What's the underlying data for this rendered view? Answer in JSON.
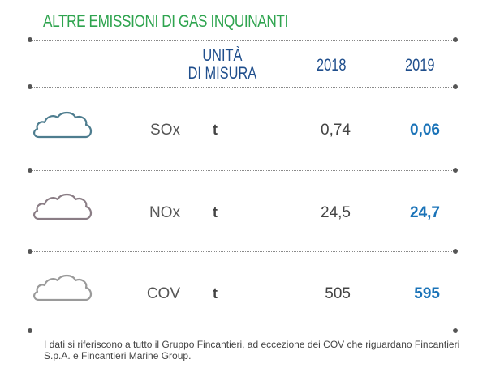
{
  "title": "ALTRE EMISSIONI DI GAS INQUINANTI",
  "header": {
    "unit_line1": "UNITÀ",
    "unit_line2": "DI MISURA",
    "year1": "2018",
    "year2": "2019"
  },
  "rows": [
    {
      "name": "SOx",
      "unit": "t",
      "v2018": "0,74",
      "v2019": "0,06",
      "icon": "cloud-icon",
      "icon_color": "#4e7d8f"
    },
    {
      "name": "NOx",
      "unit": "t",
      "v2018": "24,5",
      "v2019": "24,7",
      "icon": "cloud-icon",
      "icon_color": "#8a7d85"
    },
    {
      "name": "COV",
      "unit": "t",
      "v2018": "505",
      "v2019": "595",
      "icon": "cloud-icon",
      "icon_color": "#9a9a9a"
    }
  ],
  "note": "I dati si riferiscono a tutto il Gruppo Fincantieri, ad eccezione dei COV che riguardano Fincantieri S.p.A. e Fincantieri Marine Group.",
  "colors": {
    "title": "#2fa44f",
    "header": "#1f4e8c",
    "value_2019": "#1a73b8"
  }
}
